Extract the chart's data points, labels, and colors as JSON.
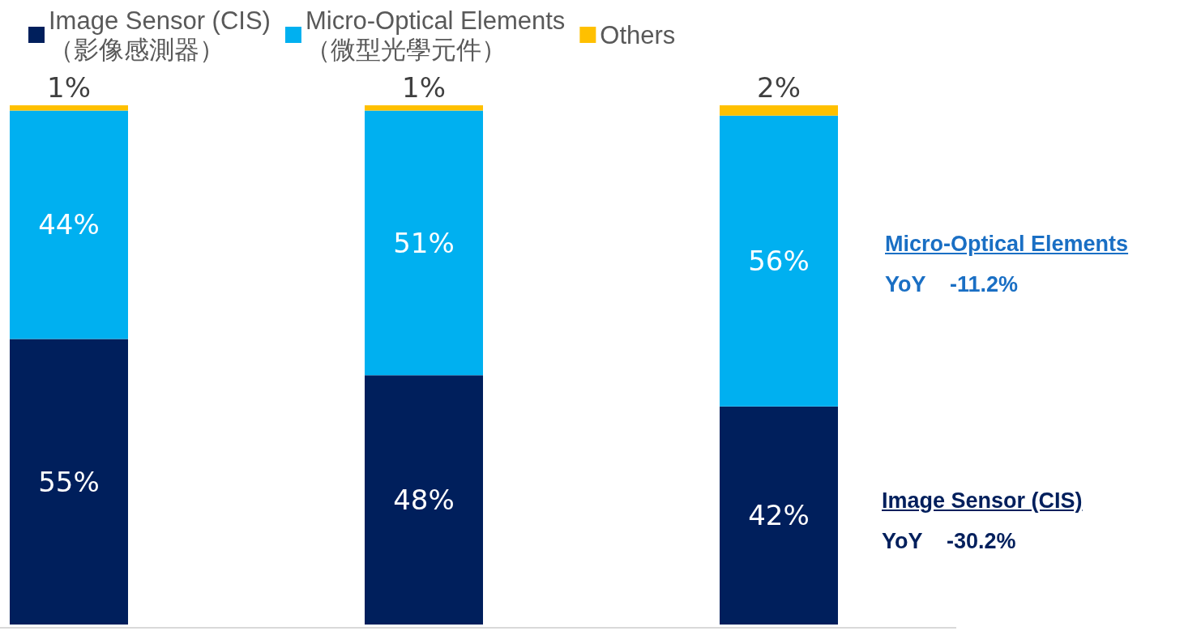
{
  "chart_data": {
    "type": "bar",
    "stacked": true,
    "categories": [
      null,
      null,
      null
    ],
    "series": [
      {
        "name": "Image Sensor (CIS)\n（影像感測器）",
        "color": "#001f5c",
        "values": [
          55,
          48,
          42
        ],
        "value_labels": [
          "55%",
          "48%",
          "42%"
        ]
      },
      {
        "name": "Micro-Optical Elements\n（微型光學元件）",
        "color": "#00b0f0",
        "values": [
          44,
          51,
          56
        ],
        "value_labels": [
          "44%",
          "51%",
          "56%"
        ]
      },
      {
        "name": "Others",
        "color": "#ffc000",
        "values": [
          1,
          1,
          2
        ],
        "value_labels": [
          "1%",
          "1%",
          "2%"
        ]
      }
    ],
    "legend": "top left",
    "annotations": [
      "Micro-Optical Elements\nYoY    -11.2%",
      "Image Sensor (CIS)\nYoY    -30.2%"
    ]
  }
}
